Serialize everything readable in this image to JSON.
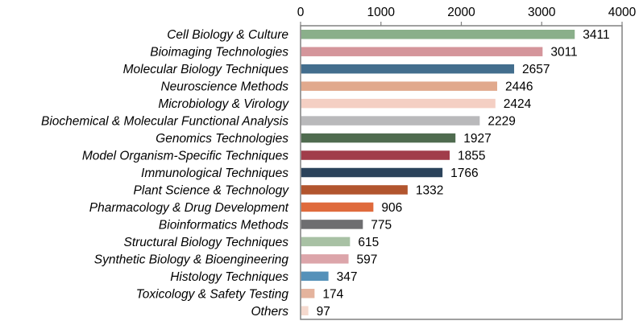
{
  "chart_data": {
    "type": "bar",
    "orientation": "horizontal",
    "title": "",
    "xlabel": "",
    "ylabel": "",
    "xlim": [
      0,
      4000
    ],
    "xticks": [
      0,
      1000,
      2000,
      3000,
      4000
    ],
    "xtick_labels": [
      "0",
      "1000",
      "2000",
      "3000",
      "4000"
    ],
    "x_axis_position": "top",
    "grid": false,
    "categories": [
      "Cell Biology & Culture",
      "Bioimaging Technologies",
      "Molecular Biology Techniques",
      "Neuroscience Methods",
      "Microbiology & Virology",
      "Biochemical & Molecular Functional Analysis",
      "Genomics Technologies",
      "Model Organism-Specific Techniques",
      "Immunological Techniques",
      "Plant Science & Technology",
      "Pharmacology & Drug Development",
      "Bioinformatics Methods",
      "Structural Biology Techniques",
      "Synthetic Biology & Bioengineering",
      "Histology Techniques",
      "Toxicology & Safety Testing",
      "Others"
    ],
    "values": [
      3411,
      3011,
      2657,
      2446,
      2424,
      2229,
      1927,
      1855,
      1766,
      1332,
      906,
      775,
      615,
      597,
      347,
      174,
      97
    ],
    "value_labels": [
      "3411",
      "3011",
      "2657",
      "2446",
      "2424",
      "2229",
      "1927",
      "1855",
      "1766",
      "1332",
      "906",
      "775",
      "615",
      "597",
      "347",
      "174",
      "97"
    ],
    "colors": [
      "#8aaf8a",
      "#d4959b",
      "#436e8e",
      "#e1a98d",
      "#f4cfc3",
      "#b9b9bb",
      "#4f6b4f",
      "#a13d4a",
      "#2b435b",
      "#b2552e",
      "#df6a3c",
      "#6e6e70",
      "#a8c1a4",
      "#dca5aa",
      "#5591b9",
      "#e4b39d",
      "#f5d9ce"
    ]
  }
}
